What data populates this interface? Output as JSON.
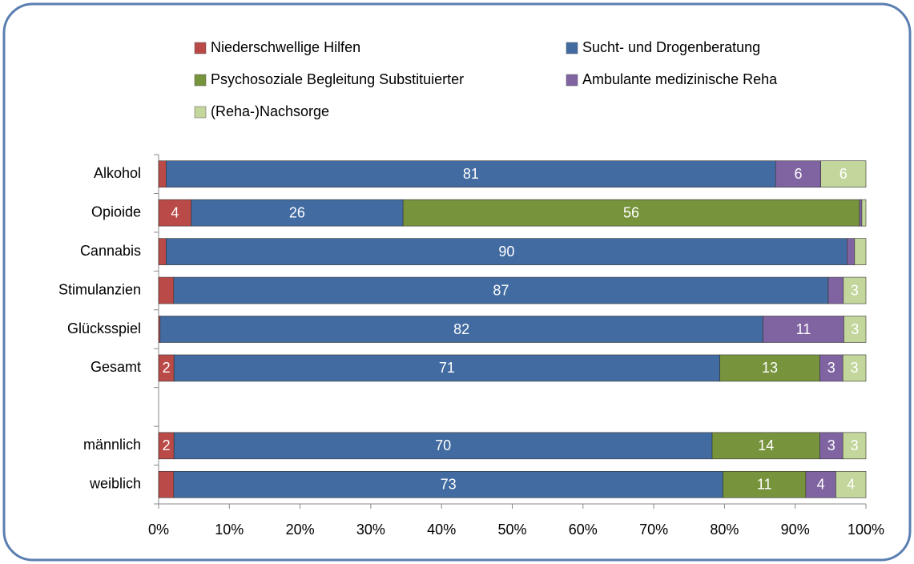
{
  "chart_data": {
    "type": "bar",
    "orientation": "horizontal",
    "stacking": "percent",
    "categories": [
      "Alkohol",
      "Opioide",
      "Cannabis",
      "Stimulanzien",
      "Glücksspiel",
      "Gesamt",
      null,
      "männlich",
      "weiblich"
    ],
    "series": [
      {
        "name": "Niederschwellige Hilfen",
        "color": "#b94a48",
        "values": [
          1,
          4,
          1,
          2,
          0.2,
          2,
          null,
          2,
          2
        ],
        "value_labels": [
          null,
          "4",
          null,
          null,
          null,
          "2",
          null,
          "2",
          null
        ]
      },
      {
        "name": "Sucht- und Drogenberatung",
        "color": "#416ba1",
        "values": [
          81,
          26,
          90,
          87,
          82,
          71,
          null,
          70,
          73
        ],
        "value_labels": [
          "81",
          "26",
          "90",
          "87",
          "82",
          "71",
          null,
          "70",
          "73"
        ]
      },
      {
        "name": "Psychosoziale Begleitung Substituierter",
        "color": "#77933c",
        "values": [
          0,
          56,
          0,
          0,
          0,
          13,
          null,
          14,
          11
        ],
        "value_labels": [
          null,
          "56",
          null,
          null,
          null,
          "13",
          null,
          "14",
          "11"
        ]
      },
      {
        "name": "Ambulante medizinische Reha",
        "color": "#8064a2",
        "values": [
          6,
          0.3,
          1,
          2,
          11,
          3,
          null,
          3,
          4
        ],
        "value_labels": [
          "6",
          null,
          null,
          null,
          "11",
          "3",
          null,
          "3",
          "4"
        ]
      },
      {
        "name": "(Reha-)Nachsorge",
        "color": "#c3d69b",
        "values": [
          6,
          0.5,
          1.5,
          3,
          3,
          3,
          null,
          3,
          4
        ],
        "value_labels": [
          "6",
          null,
          null,
          "3",
          "3",
          "3",
          null,
          "3",
          "4"
        ]
      }
    ],
    "xlim": [
      0,
      100
    ],
    "xticks": [
      {
        "value": 0,
        "label": "0%"
      },
      {
        "value": 10,
        "label": "10%"
      },
      {
        "value": 20,
        "label": "20%"
      },
      {
        "value": 30,
        "label": "30%"
      },
      {
        "value": 40,
        "label": "40%"
      },
      {
        "value": 50,
        "label": "50%"
      },
      {
        "value": 60,
        "label": "60%"
      },
      {
        "value": 70,
        "label": "70%"
      },
      {
        "value": 80,
        "label": "80%"
      },
      {
        "value": 90,
        "label": "90%"
      },
      {
        "value": 100,
        "label": "100%"
      }
    ],
    "legend": "top"
  }
}
